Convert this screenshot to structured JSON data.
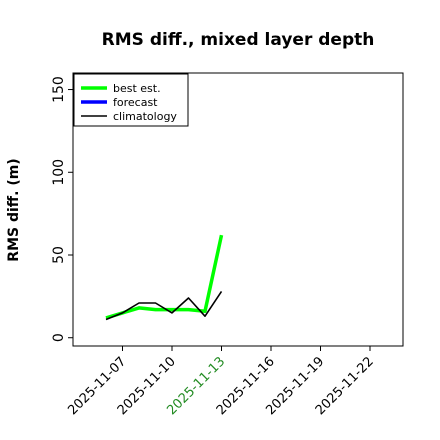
{
  "chart_data": {
    "type": "line",
    "title": "RMS diff., mixed layer depth",
    "xlabel": "",
    "ylabel": "RMS diff. (m)",
    "xlim": [
      "2025-11-04T00:00",
      "2025-11-24T00:00"
    ],
    "ylim": [
      -5,
      160
    ],
    "x_ticks": [
      "2025-11-07",
      "2025-11-10",
      "2025-11-13",
      "2025-11-16",
      "2025-11-19",
      "2025-11-22"
    ],
    "x_tick_colors": [
      "#000000",
      "#000000",
      "#228B22",
      "#000000",
      "#000000",
      "#000000"
    ],
    "y_ticks": [
      0,
      50,
      100,
      150
    ],
    "grid": false,
    "legend_position": "top-left",
    "series": [
      {
        "name": "best est.",
        "color": "#00ff00",
        "x": [
          "2025-11-06",
          "2025-11-07",
          "2025-11-08",
          "2025-11-09",
          "2025-11-10",
          "2025-11-11",
          "2025-11-12",
          "2025-11-13"
        ],
        "y": [
          12,
          15,
          18,
          17,
          17,
          17,
          16,
          62
        ]
      },
      {
        "name": "forecast",
        "color": "#0000ff",
        "x": [],
        "y": []
      },
      {
        "name": "climatology",
        "color": "#000000",
        "x": [
          "2025-11-06",
          "2025-11-07",
          "2025-11-08",
          "2025-11-09",
          "2025-11-10",
          "2025-11-11",
          "2025-11-12",
          "2025-11-13"
        ],
        "y": [
          11,
          15,
          21,
          21,
          15,
          24,
          13,
          28
        ]
      }
    ]
  }
}
